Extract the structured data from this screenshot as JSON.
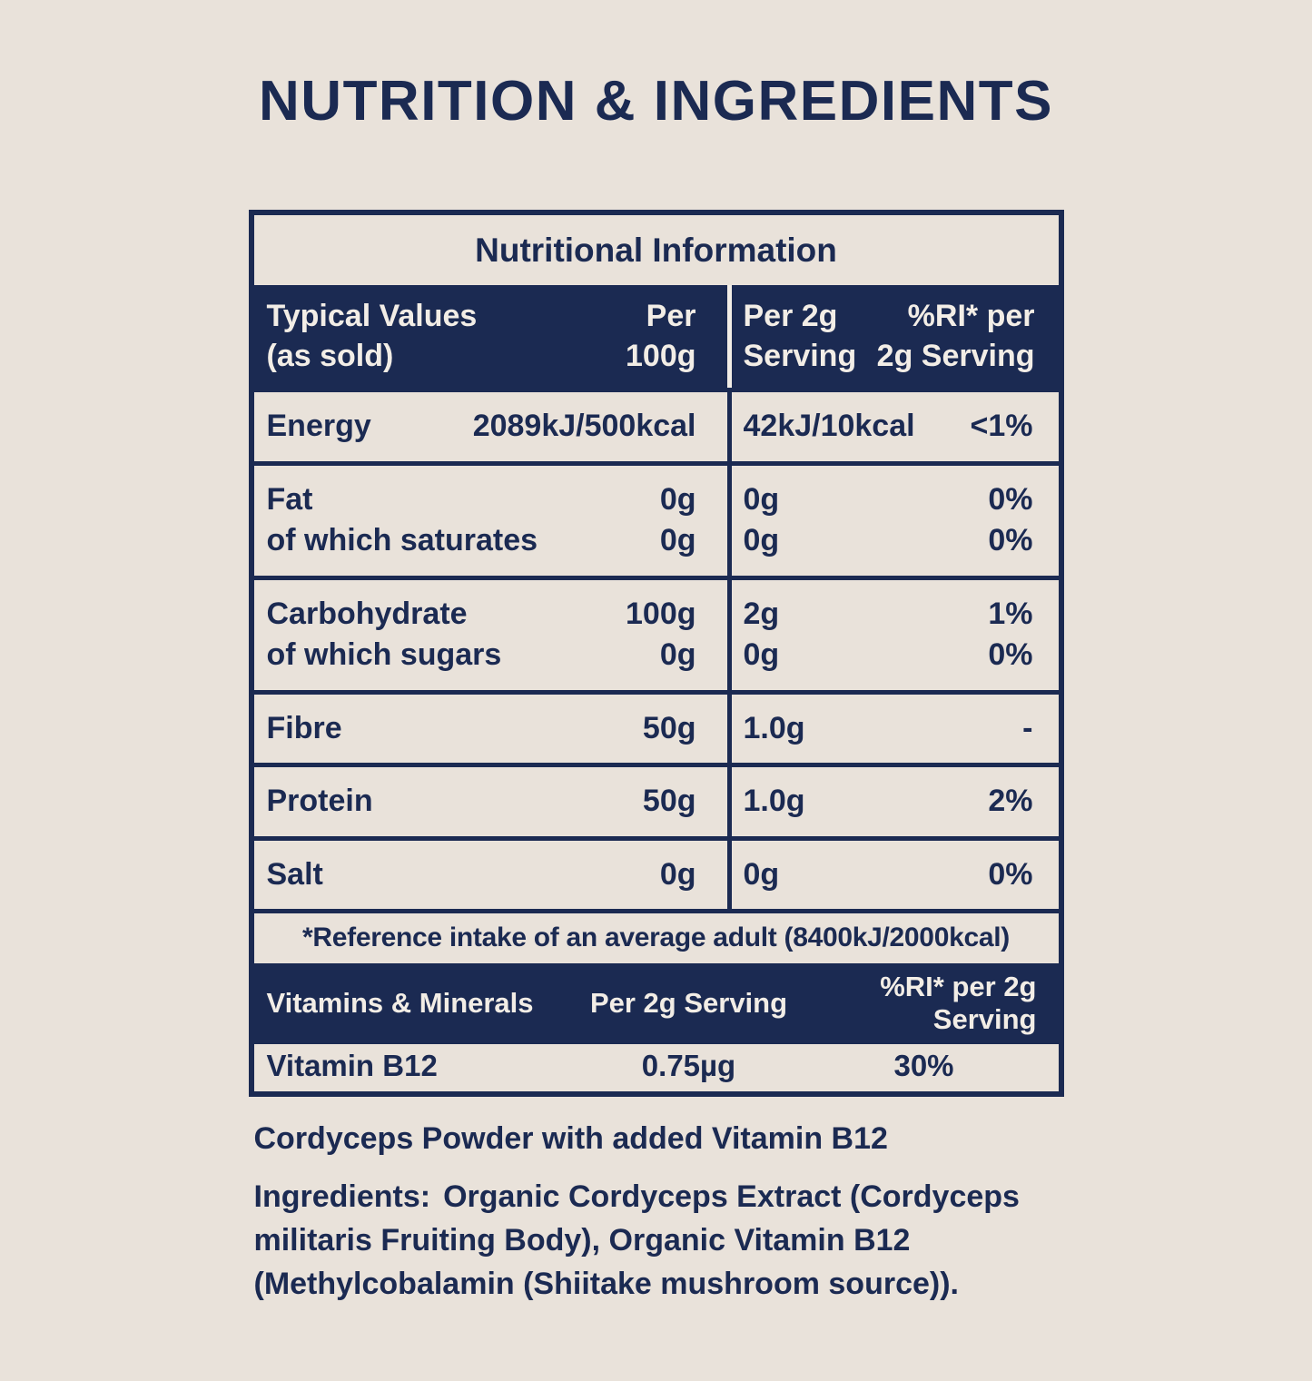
{
  "page_title": "NUTRITION & INGREDIENTS",
  "colors": {
    "navy": "#1b2a52",
    "cream": "#e9e2da",
    "band_text": "#f2ede6"
  },
  "table": {
    "title": "Nutritional Information",
    "header": {
      "col_label_1": "Typical Values",
      "col_label_2": "(as sold)",
      "per100_1": "Per",
      "per100_2": "100g",
      "per2_1": "Per 2g",
      "per2_2": "Serving",
      "ri_1": "%RI* per",
      "ri_2": "2g Serving"
    },
    "rows": [
      {
        "labels": [
          "Energy"
        ],
        "per100": [
          "2089kJ/500kcal"
        ],
        "per2": [
          "42kJ/10kcal"
        ],
        "ri": [
          "<1%"
        ]
      },
      {
        "labels": [
          "Fat",
          "of which saturates"
        ],
        "per100": [
          "0g",
          "0g"
        ],
        "per2": [
          "0g",
          "0g"
        ],
        "ri": [
          "0%",
          "0%"
        ]
      },
      {
        "labels": [
          "Carbohydrate",
          "of which sugars"
        ],
        "per100": [
          "100g",
          "0g"
        ],
        "per2": [
          "2g",
          "0g"
        ],
        "ri": [
          "1%",
          "0%"
        ]
      },
      {
        "labels": [
          "Fibre"
        ],
        "per100": [
          "50g"
        ],
        "per2": [
          "1.0g"
        ],
        "ri": [
          "-"
        ]
      },
      {
        "labels": [
          "Protein"
        ],
        "per100": [
          "50g"
        ],
        "per2": [
          "1.0g"
        ],
        "ri": [
          "2%"
        ]
      },
      {
        "labels": [
          "Salt"
        ],
        "per100": [
          "0g"
        ],
        "per2": [
          "0g"
        ],
        "ri": [
          "0%"
        ]
      }
    ],
    "footnote": "*Reference intake of an average adult (8400kJ/2000kcal)",
    "vitamins_header": {
      "col1": "Vitamins & Minerals",
      "col2": "Per 2g Serving",
      "col3": "%RI* per 2g Serving"
    },
    "vitamins_rows": [
      {
        "name": "Vitamin B12",
        "per2": "0.75µg",
        "ri": "30%"
      }
    ]
  },
  "description": {
    "line1": "Cordyceps Powder with added Vitamin B12",
    "ingredients_label": "Ingredients:",
    "ingredients_text": "Organic Cordyceps Extract (Cordyceps militaris Fruiting Body), Organic Vitamin B12 (Methylcobalamin (Shiitake mushroom source))."
  }
}
